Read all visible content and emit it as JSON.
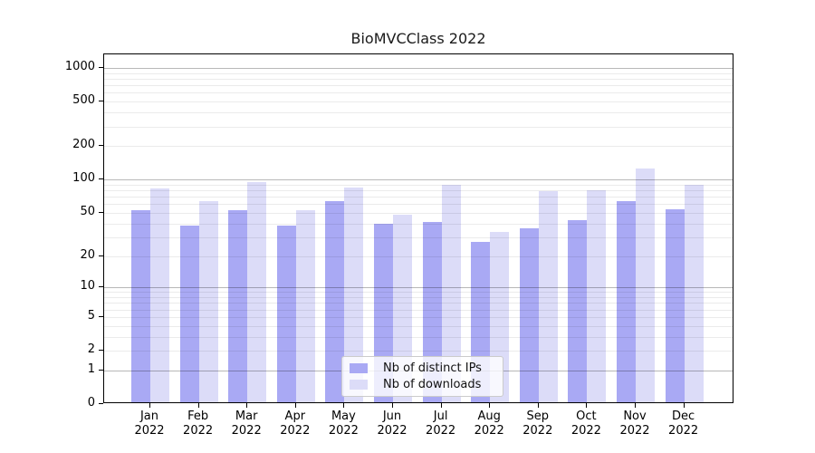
{
  "title": "BioMVCClass 2022",
  "chart_data": {
    "type": "bar",
    "title": "BioMVCClass 2022",
    "months": [
      "Jan",
      "Feb",
      "Mar",
      "Apr",
      "May",
      "Jun",
      "Jul",
      "Aug",
      "Sep",
      "Oct",
      "Nov",
      "Dec"
    ],
    "year": "2022",
    "categories": [
      "Jan 2022",
      "Feb 2022",
      "Mar 2022",
      "Apr 2022",
      "May 2022",
      "Jun 2022",
      "Jul 2022",
      "Aug 2022",
      "Sep 2022",
      "Oct 2022",
      "Nov 2022",
      "Dec 2022"
    ],
    "series": [
      {
        "name": "Nb of distinct IPs",
        "color": "#a9a9f4",
        "values": [
          51,
          37,
          51,
          37,
          62,
          38,
          40,
          26,
          35,
          41,
          61,
          52
        ]
      },
      {
        "name": "Nb of downloads",
        "color": "#dcdcf8",
        "values": [
          80,
          62,
          92,
          51,
          82,
          46,
          86,
          32,
          75,
          77,
          120,
          87
        ]
      }
    ],
    "y_ticks": [
      0,
      1,
      2,
      5,
      10,
      20,
      50,
      100,
      200,
      500,
      1000
    ],
    "y_scale": "log10(1+x)",
    "ylim": [
      0,
      1300
    ],
    "xlabel": "",
    "ylabel": "",
    "grid": "on",
    "grid_major_at": [
      1,
      10,
      100,
      1000
    ],
    "grid_minor_at": [
      2,
      3,
      4,
      5,
      6,
      7,
      8,
      9,
      20,
      30,
      40,
      50,
      60,
      70,
      80,
      90,
      200,
      300,
      400,
      500,
      600,
      700,
      800,
      900
    ],
    "legend_position": "lower center"
  }
}
